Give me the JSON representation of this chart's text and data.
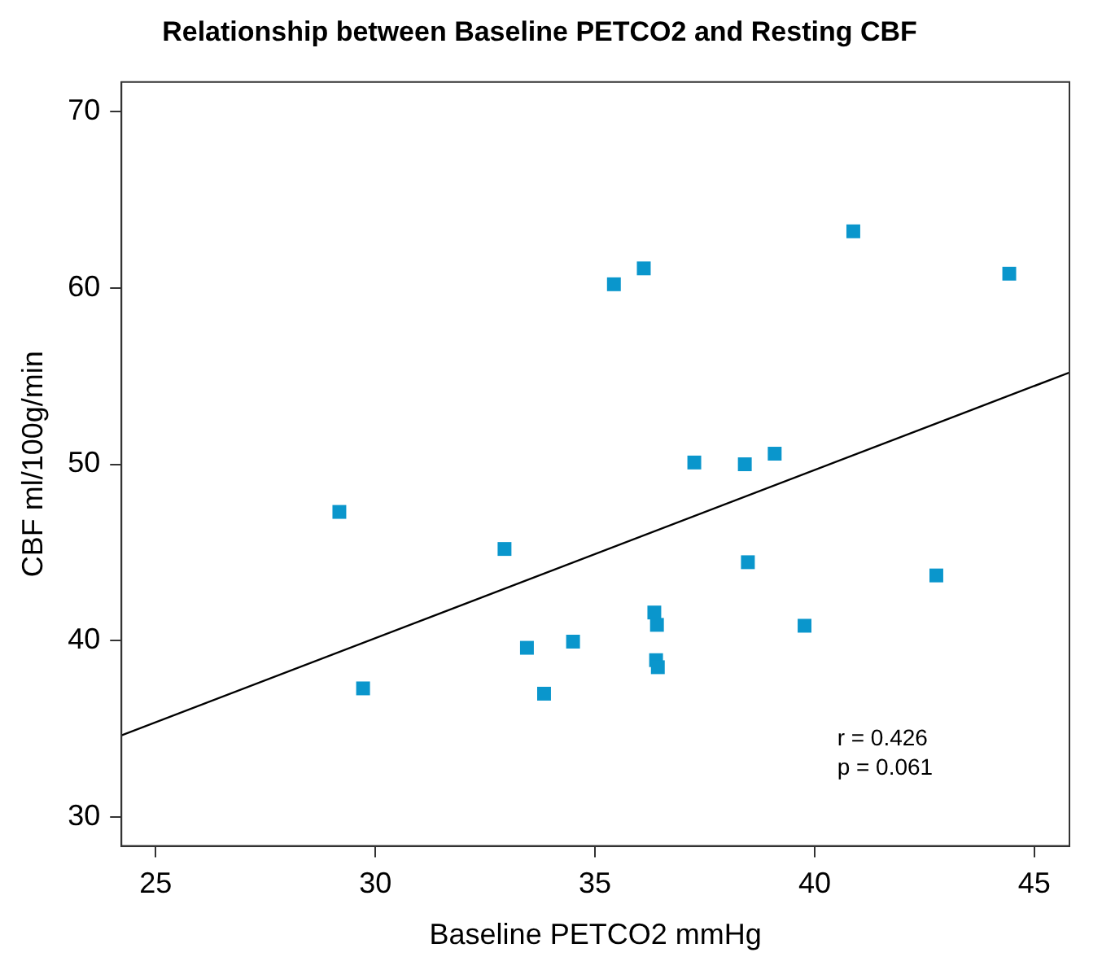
{
  "chart_data": {
    "type": "scatter",
    "title": "Relationship between Baseline PETCO2 and Resting CBF",
    "xlabel": "Baseline PETCO2 mmHg",
    "ylabel": "CBF ml/100g/min",
    "xlim": [
      24.22,
      45.8
    ],
    "xticks": [
      25,
      30,
      35,
      40,
      45
    ],
    "ylim": [
      28.37,
      71.66
    ],
    "yticks": [
      30,
      40,
      50,
      60,
      70
    ],
    "grid": false,
    "legend": false,
    "marker": "square",
    "series": [
      {
        "color": "#0a96cc",
        "x": [
          29.18,
          29.72,
          32.94,
          33.45,
          33.84,
          34.5,
          35.43,
          36.11,
          36.35,
          36.41,
          36.39,
          36.43,
          37.26,
          38.41,
          38.48,
          39.09,
          39.77,
          40.88,
          42.77,
          44.43
        ],
        "values": [
          47.3,
          37.3,
          45.2,
          39.6,
          37.0,
          39.95,
          60.2,
          61.1,
          41.6,
          40.9,
          38.9,
          38.5,
          50.1,
          50.0,
          44.45,
          50.6,
          40.85,
          63.2,
          43.7,
          60.8
        ]
      },
      {
        "type": "line",
        "color": "#000000",
        "marker": "none",
        "line_style": "solid",
        "x": [
          24.22,
          45.8
        ],
        "values": [
          34.64,
          55.2
        ]
      }
    ],
    "annotations": [
      "r = 0.426",
      "p = 0.061"
    ]
  }
}
